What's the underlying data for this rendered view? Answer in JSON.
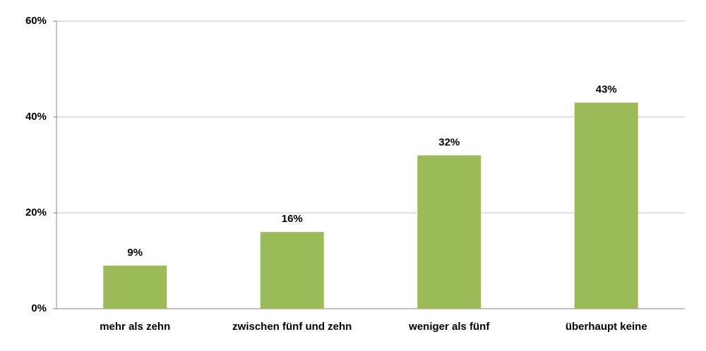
{
  "chart_data": {
    "type": "bar",
    "categories": [
      "mehr als zehn",
      "zwischen fünf und zehn",
      "weniger als fünf",
      "überhaupt keine"
    ],
    "values": [
      9,
      16,
      32,
      43
    ],
    "value_labels": [
      "9%",
      "16%",
      "32%",
      "43%"
    ],
    "color": "#9bbb59",
    "ylim": [
      0,
      60
    ],
    "yticks": [
      {
        "value": 0,
        "label": "0%"
      },
      {
        "value": 20,
        "label": "20%"
      },
      {
        "value": 40,
        "label": "40%"
      },
      {
        "value": 60,
        "label": "60%"
      }
    ],
    "grid": true
  }
}
